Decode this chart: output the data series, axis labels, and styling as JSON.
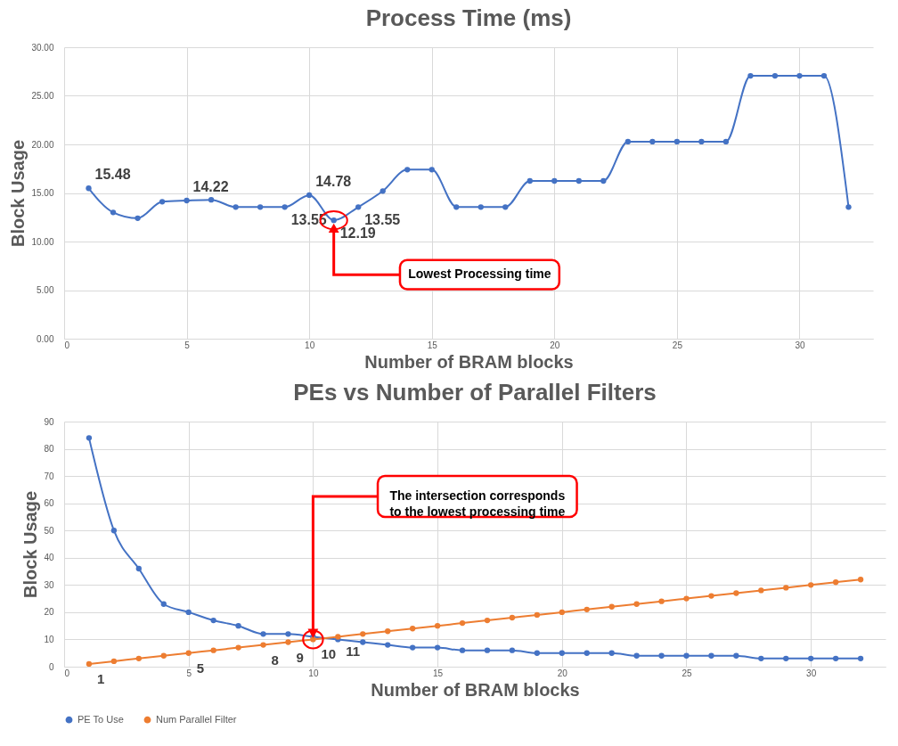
{
  "chart_data": [
    {
      "type": "line",
      "title": "Process Time (ms)",
      "xlabel": "Number of BRAM blocks",
      "ylabel": "Block Usage",
      "x": [
        1,
        2,
        3,
        4,
        5,
        6,
        7,
        8,
        9,
        10,
        11,
        12,
        13,
        14,
        15,
        16,
        17,
        18,
        19,
        20,
        21,
        22,
        23,
        24,
        25,
        26,
        27,
        28,
        29,
        30,
        31,
        32
      ],
      "series": [
        {
          "color": "#4472c4",
          "values": [
            15.48,
            13.0,
            12.4,
            14.1,
            14.22,
            14.3,
            13.55,
            13.55,
            13.55,
            14.78,
            12.19,
            13.55,
            15.2,
            17.4,
            17.4,
            13.55,
            13.55,
            13.55,
            16.24,
            16.24,
            16.24,
            16.24,
            20.28,
            20.28,
            20.28,
            20.28,
            20.28,
            27.06,
            27.06,
            27.06,
            27.06,
            13.55
          ],
          "value_labels": [
            "15.48",
            null,
            null,
            null,
            "14.22",
            null,
            null,
            null,
            "13.55",
            "14.78",
            "12.19",
            "13.55",
            null,
            null,
            null,
            null,
            null,
            null,
            null,
            null,
            null,
            null,
            null,
            null,
            null,
            null,
            null,
            null,
            null,
            null,
            null,
            null
          ]
        }
      ],
      "xlim": [
        0,
        33
      ],
      "xticks": [
        0,
        5,
        10,
        15,
        20,
        25,
        30
      ],
      "ylim": [
        0,
        30
      ],
      "yticks": [
        {
          "value": 0,
          "label": "0.00"
        },
        {
          "value": 5,
          "label": "5.00"
        },
        {
          "value": 10,
          "label": "10.00"
        },
        {
          "value": 15,
          "label": "15.00"
        },
        {
          "value": 20,
          "label": "20.00"
        },
        {
          "value": 25,
          "label": "25.00"
        },
        {
          "value": 30,
          "label": "30.00"
        }
      ],
      "grid": true,
      "marker": "circle",
      "line_style": "solid",
      "legend": false,
      "annotations": [
        {
          "text": "Lowest Processing time",
          "x": 11,
          "y": 12.19
        }
      ]
    },
    {
      "type": "line",
      "title": "PEs vs Number of Parallel Filters",
      "xlabel": "Number of BRAM blocks",
      "ylabel": "Block Usage",
      "x": [
        1,
        2,
        3,
        4,
        5,
        6,
        7,
        8,
        9,
        10,
        11,
        12,
        13,
        14,
        15,
        16,
        17,
        18,
        19,
        20,
        21,
        22,
        23,
        24,
        25,
        26,
        27,
        28,
        29,
        30,
        31,
        32
      ],
      "series": [
        {
          "name": "PE To Use",
          "color": "#4472c4",
          "values": [
            84,
            50,
            36,
            23,
            20,
            17,
            15,
            12,
            12,
            11,
            10,
            9,
            8,
            7,
            7,
            6,
            6,
            6,
            5,
            5,
            5,
            5,
            4,
            4,
            4,
            4,
            4,
            3,
            3,
            3,
            3,
            3
          ]
        },
        {
          "name": "Num Parallel Filter",
          "color": "#ed7d31",
          "values": [
            1,
            2,
            3,
            4,
            5,
            6,
            7,
            8,
            9,
            10,
            11,
            12,
            13,
            14,
            15,
            16,
            17,
            18,
            19,
            20,
            21,
            22,
            23,
            24,
            25,
            26,
            27,
            28,
            29,
            30,
            31,
            32
          ],
          "value_labels": [
            "1",
            null,
            null,
            null,
            "5",
            null,
            null,
            "8",
            "9",
            "10",
            "11",
            null,
            null,
            null,
            null,
            null,
            null,
            null,
            null,
            null,
            null,
            null,
            null,
            null,
            null,
            null,
            null,
            null,
            null,
            null,
            null,
            null
          ]
        }
      ],
      "xlim": [
        0,
        33
      ],
      "xticks": [
        0,
        5,
        10,
        15,
        20,
        25,
        30
      ],
      "ylim": [
        0,
        90
      ],
      "yticks": [
        0,
        10,
        20,
        30,
        40,
        50,
        60,
        70,
        80,
        90
      ],
      "grid": true,
      "marker": "circle",
      "line_style": "solid",
      "legend": "bottom",
      "annotations": [
        {
          "text": "The intersection corresponds to the lowest processing time",
          "x": 10,
          "y": 10
        }
      ]
    }
  ]
}
